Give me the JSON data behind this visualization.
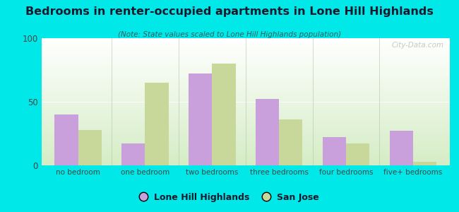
{
  "title": "Bedrooms in renter-occupied apartments in Lone Hill Highlands",
  "subtitle": "(Note: State values scaled to Lone Hill Highlands population)",
  "categories": [
    "no bedroom",
    "one bedroom",
    "two bedrooms",
    "three bedrooms",
    "four bedrooms",
    "five+ bedrooms"
  ],
  "lhh_values": [
    40,
    17,
    72,
    52,
    22,
    27
  ],
  "sj_values": [
    28,
    65,
    80,
    36,
    17,
    3
  ],
  "lhh_color": "#c9a0dc",
  "sj_color": "#c8d89a",
  "background_outer": "#00e8e8",
  "background_inner_top": "#ffffff",
  "background_inner_bottom": "#d4ecc4",
  "ylim": [
    0,
    100
  ],
  "yticks": [
    0,
    50,
    100
  ],
  "bar_width": 0.35,
  "legend_lhh": "Lone Hill Highlands",
  "legend_sj": "San Jose",
  "watermark": "City-Data.com",
  "title_color": "#1a1a2e",
  "subtitle_color": "#2a6060",
  "tick_color": "#444444",
  "separator_color": "#b0c8b0"
}
